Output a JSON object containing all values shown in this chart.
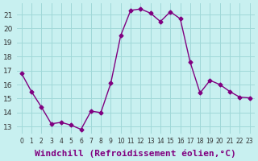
{
  "x": [
    0,
    1,
    2,
    3,
    4,
    5,
    6,
    7,
    8,
    9,
    10,
    11,
    12,
    13,
    14,
    15,
    16,
    17,
    18,
    19,
    20,
    21,
    22,
    23
  ],
  "y": [
    16.8,
    15.5,
    14.4,
    13.2,
    13.3,
    13.1,
    12.8,
    14.1,
    14.0,
    16.1,
    19.5,
    21.3,
    21.4,
    21.1,
    20.5,
    21.2,
    20.7,
    17.6,
    15.4,
    16.3,
    16.0,
    15.5,
    15.1,
    15.05
  ],
  "line_color": "#800080",
  "marker": "D",
  "marker_size": 2.5,
  "bg_color": "#c8f0f0",
  "grid_color": "#a0d8d8",
  "xlabel": "Windchill (Refroidissement éolien,°C)",
  "xlabel_fontsize": 8,
  "yticks": [
    13,
    14,
    15,
    16,
    17,
    18,
    19,
    20,
    21
  ],
  "xticks": [
    0,
    1,
    2,
    3,
    4,
    5,
    6,
    7,
    8,
    9,
    10,
    11,
    12,
    13,
    14,
    15,
    16,
    17,
    18,
    19,
    20,
    21,
    22,
    23
  ],
  "ylim": [
    12.5,
    21.8
  ],
  "xlim": [
    -0.5,
    23.5
  ]
}
